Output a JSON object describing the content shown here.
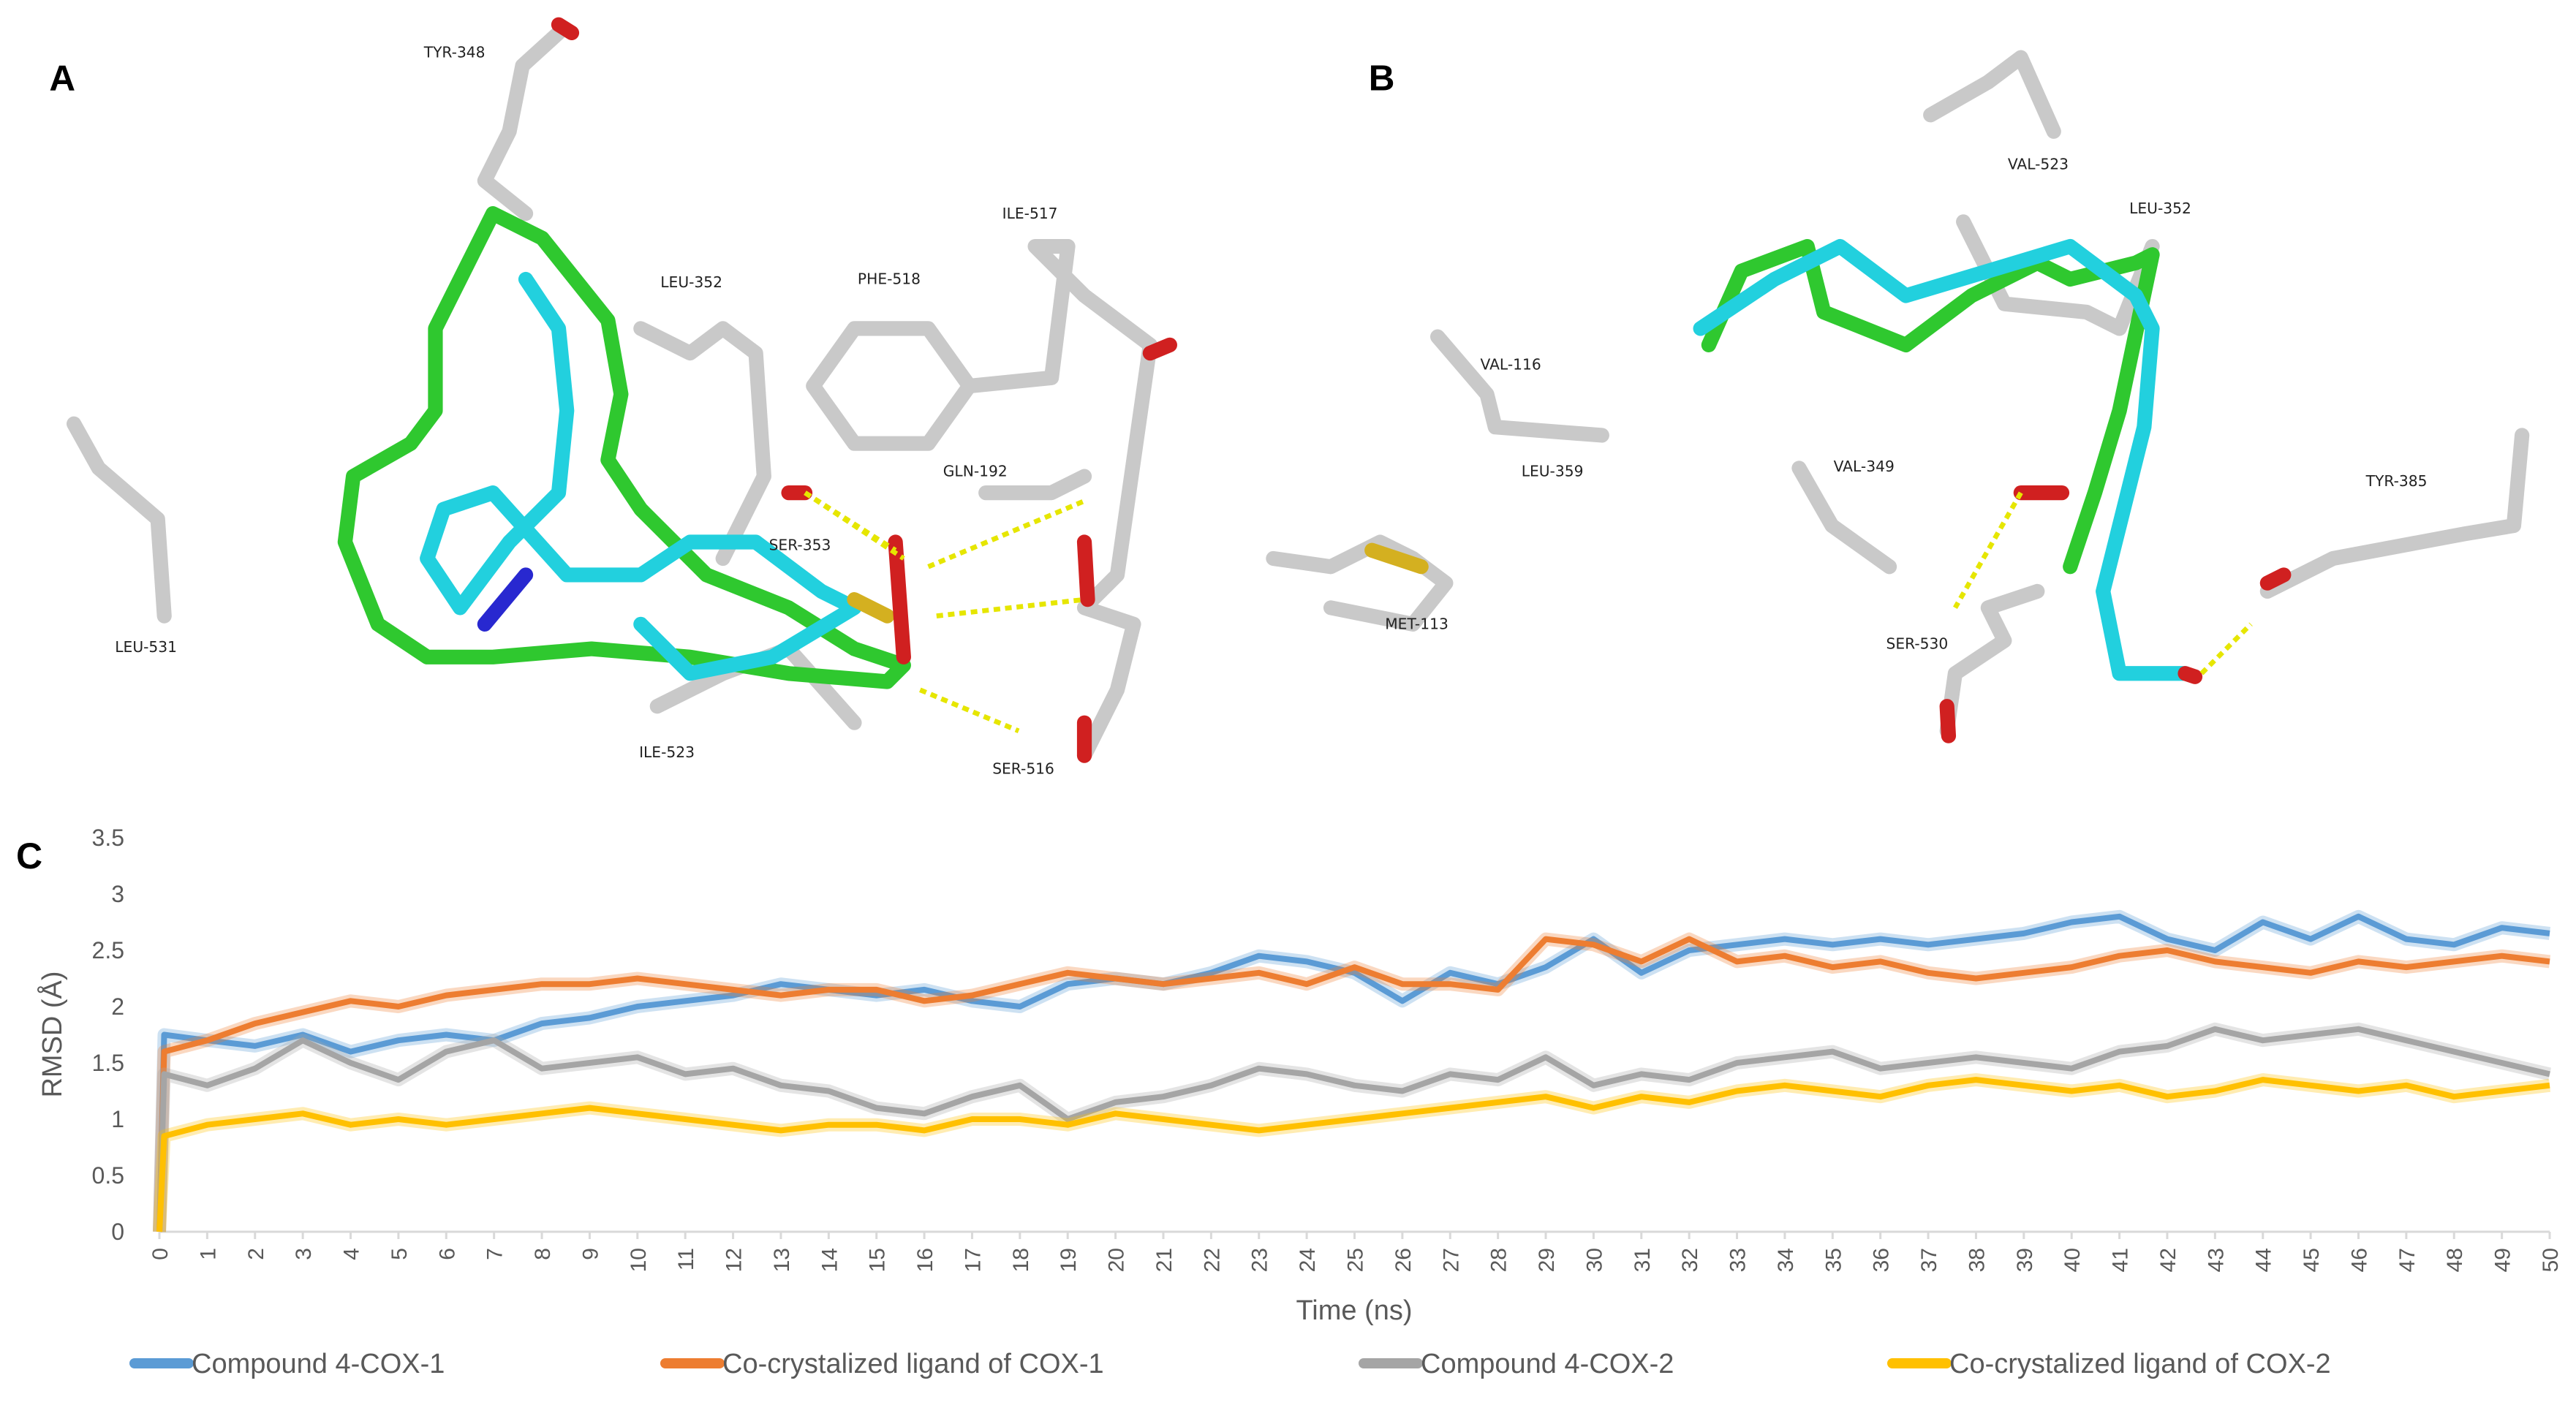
{
  "panel_labels": [
    "A",
    "B"
  ],
  "panel_a": {
    "residues": [
      "TYR-348",
      "ILE-517",
      "PHE-518",
      "LEU-352",
      "GLN-192",
      "SER-353",
      "LEU-531",
      "ILE-523",
      "SER-516"
    ]
  },
  "panel_b": {
    "residues": [
      "VAL-523",
      "LEU-352",
      "VAL-116",
      "LEU-359",
      "VAL-349",
      "TYR-385",
      "MET-113",
      "SER-530"
    ]
  },
  "chart_data": {
    "type": "line",
    "panel_label": "C",
    "x_label": "Time (ns)",
    "y_label": "RMSD (Å)",
    "x": [
      0,
      0.1,
      1,
      2,
      3,
      4,
      5,
      6,
      7,
      8,
      9,
      10,
      11,
      12,
      13,
      14,
      15,
      16,
      17,
      18,
      19,
      20,
      21,
      22,
      23,
      24,
      25,
      26,
      27,
      28,
      29,
      30,
      31,
      32,
      33,
      34,
      35,
      36,
      37,
      38,
      39,
      40,
      41,
      42,
      43,
      44,
      45,
      46,
      47,
      48,
      49,
      50
    ],
    "series": [
      {
        "name": "Compound 4-COX-1",
        "color": "#5b9bd5",
        "values": [
          0,
          1.75,
          1.7,
          1.65,
          1.75,
          1.6,
          1.7,
          1.75,
          1.7,
          1.85,
          1.9,
          2.0,
          2.05,
          2.1,
          2.2,
          2.15,
          2.1,
          2.15,
          2.05,
          2.0,
          2.2,
          2.25,
          2.2,
          2.3,
          2.45,
          2.4,
          2.3,
          2.05,
          2.3,
          2.2,
          2.35,
          2.6,
          2.3,
          2.5,
          2.55,
          2.6,
          2.55,
          2.6,
          2.55,
          2.6,
          2.65,
          2.75,
          2.8,
          2.6,
          2.5,
          2.75,
          2.6,
          2.8,
          2.6,
          2.55,
          2.7,
          2.65
        ]
      },
      {
        "name": "Co-crystalized ligand of COX-1",
        "color": "#ed7d31",
        "values": [
          0,
          1.6,
          1.7,
          1.85,
          1.95,
          2.05,
          2.0,
          2.1,
          2.15,
          2.2,
          2.2,
          2.25,
          2.2,
          2.15,
          2.1,
          2.15,
          2.15,
          2.05,
          2.1,
          2.2,
          2.3,
          2.25,
          2.2,
          2.25,
          2.3,
          2.2,
          2.35,
          2.2,
          2.2,
          2.15,
          2.6,
          2.55,
          2.4,
          2.6,
          2.4,
          2.45,
          2.35,
          2.4,
          2.3,
          2.25,
          2.3,
          2.35,
          2.45,
          2.5,
          2.4,
          2.35,
          2.3,
          2.4,
          2.35,
          2.4,
          2.45,
          2.4
        ]
      },
      {
        "name": "Compound 4-COX-2",
        "color": "#a5a5a5",
        "values": [
          0,
          1.4,
          1.3,
          1.45,
          1.7,
          1.5,
          1.35,
          1.6,
          1.7,
          1.45,
          1.5,
          1.55,
          1.4,
          1.45,
          1.3,
          1.25,
          1.1,
          1.05,
          1.2,
          1.3,
          1.0,
          1.15,
          1.2,
          1.3,
          1.45,
          1.4,
          1.3,
          1.25,
          1.4,
          1.35,
          1.55,
          1.3,
          1.4,
          1.35,
          1.5,
          1.55,
          1.6,
          1.45,
          1.5,
          1.55,
          1.5,
          1.45,
          1.6,
          1.65,
          1.8,
          1.7,
          1.75,
          1.8,
          1.7,
          1.6,
          1.5,
          1.4
        ]
      },
      {
        "name": "Co-crystalized ligand of COX-2",
        "color": "#ffc000",
        "values": [
          0,
          0.85,
          0.95,
          1.0,
          1.05,
          0.95,
          1.0,
          0.95,
          1.0,
          1.05,
          1.1,
          1.05,
          1.0,
          0.95,
          0.9,
          0.95,
          0.95,
          0.9,
          1.0,
          1.0,
          0.95,
          1.05,
          1.0,
          0.95,
          0.9,
          0.95,
          1.0,
          1.05,
          1.1,
          1.15,
          1.2,
          1.1,
          1.2,
          1.15,
          1.25,
          1.3,
          1.25,
          1.2,
          1.3,
          1.35,
          1.3,
          1.25,
          1.3,
          1.2,
          1.25,
          1.35,
          1.3,
          1.25,
          1.3,
          1.2,
          1.25,
          1.3
        ]
      }
    ],
    "xlim": [
      0,
      50
    ],
    "xticks": [
      0,
      1,
      2,
      3,
      4,
      5,
      6,
      7,
      8,
      9,
      10,
      11,
      12,
      13,
      14,
      15,
      16,
      17,
      18,
      19,
      20,
      21,
      22,
      23,
      24,
      25,
      26,
      27,
      28,
      29,
      30,
      31,
      32,
      33,
      34,
      35,
      36,
      37,
      38,
      39,
      40,
      41,
      42,
      43,
      44,
      45,
      46,
      47,
      48,
      49,
      50
    ],
    "ylim": [
      0,
      3.5
    ],
    "yticks": [
      0,
      0.5,
      1,
      1.5,
      2,
      2.5,
      3,
      3.5
    ],
    "grid": false,
    "legend": "bottom"
  }
}
